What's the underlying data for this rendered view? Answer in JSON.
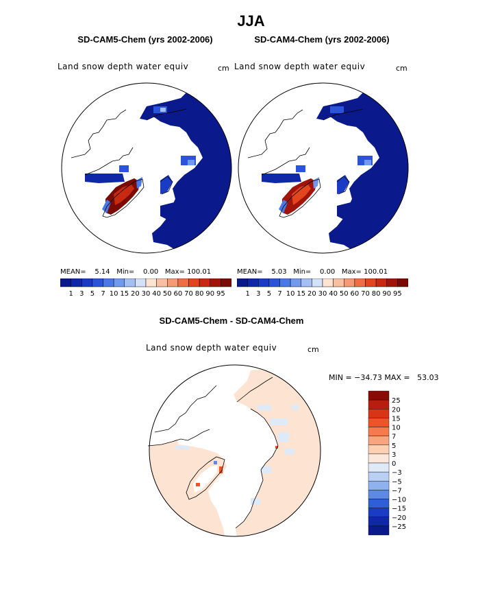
{
  "title": "JJA",
  "panels": [
    {
      "title": "SD-CAM5-Chem (yrs 2002-2006)",
      "variable": "Land snow depth water equiv",
      "units": "cm",
      "mean_label": "MEAN=",
      "mean": "5.14",
      "min_label": "Min=",
      "min": "0.00",
      "max_label": "Max=",
      "max": "100.01"
    },
    {
      "title": "SD-CAM4-Chem (yrs 2002-2006)",
      "variable": "Land snow depth water equiv",
      "units": "cm",
      "mean_label": "MEAN=",
      "mean": "5.03",
      "min_label": "Min=",
      "min": "0.00",
      "max_label": "Max=",
      "max": "100.01"
    }
  ],
  "abs_colorbar": {
    "labels": [
      "1",
      "3",
      "5",
      "7",
      "10",
      "15",
      "20",
      "30",
      "40",
      "50",
      "60",
      "70",
      "80",
      "90",
      "95"
    ],
    "colors": [
      "#0a1a8c",
      "#0f28a8",
      "#1a3cc4",
      "#2a55d8",
      "#4a78e6",
      "#7199ee",
      "#a3bff4",
      "#d3e2f8",
      "#fde3d2",
      "#f9bfa3",
      "#f59a74",
      "#ee6f44",
      "#e2461e",
      "#c72a10",
      "#a11409",
      "#7a0a04"
    ]
  },
  "diff_panel": {
    "title": "SD-CAM5-Chem - SD-CAM4-Chem",
    "variable": "Land snow depth water equiv",
    "units": "cm",
    "minmax_text": "MIN = −34.73 MAX =   53.03"
  },
  "diff_colorbar": {
    "labels": [
      "25",
      "20",
      "15",
      "10",
      "7",
      "5",
      "3",
      "0",
      "−3",
      "−5",
      "−7",
      "−10",
      "−15",
      "−20",
      "−25"
    ],
    "colors": [
      "#8c0a04",
      "#b81e0e",
      "#d83516",
      "#ee5426",
      "#f57a4c",
      "#f8a47e",
      "#fdd0b4",
      "#fce8da",
      "#dfeaf8",
      "#b9d0f4",
      "#8eb2ee",
      "#5f8ae4",
      "#2e5fd6",
      "#1a3cc4",
      "#0f28a8",
      "#0a1a8c"
    ]
  }
}
